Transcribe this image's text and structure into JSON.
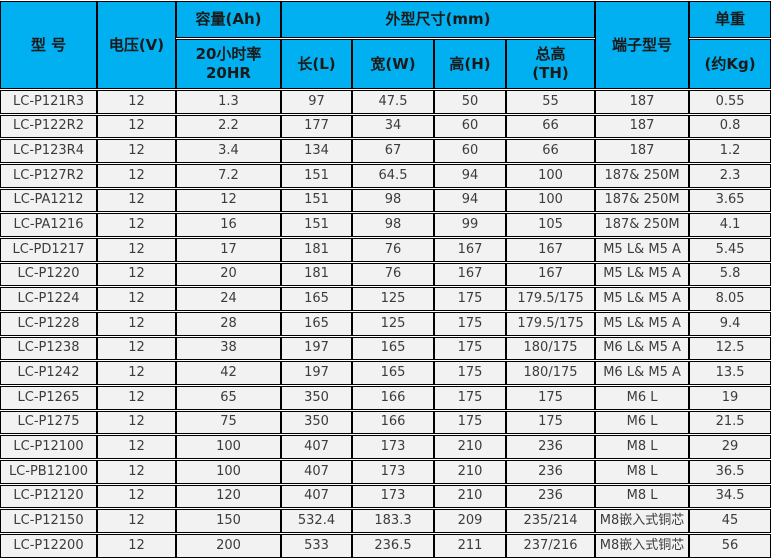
{
  "colors": {
    "header_bg": "#00b0f0",
    "row_bg": "#f2f2f2",
    "border": "#000000",
    "header_text": "#1a1a1a",
    "cell_text": "#3c3c3c"
  },
  "table": {
    "header": {
      "model": "型 号",
      "voltage": "电压(V)",
      "capacity_title": "容量(Ah)",
      "capacity_sub": "20小时率\n20HR",
      "dimensions_title": "外型尺寸(mm)",
      "length": "长(L)",
      "width": "宽(W)",
      "height": "高(H)",
      "total_height": "总高\n(TH)",
      "terminal": "端子型号",
      "weight_title": "单重",
      "weight_sub": "(约Kg)"
    },
    "column_keys": [
      "model",
      "voltage",
      "capacity",
      "length",
      "width",
      "height",
      "total-height",
      "terminal",
      "weight"
    ],
    "rows": [
      [
        "LC-P121R3",
        "12",
        "1.3",
        "97",
        "47.5",
        "50",
        "55",
        "187",
        "0.55"
      ],
      [
        "LC-P122R2",
        "12",
        "2.2",
        "177",
        "34",
        "60",
        "66",
        "187",
        "0.8"
      ],
      [
        "LC-P123R4",
        "12",
        "3.4",
        "134",
        "67",
        "60",
        "66",
        "187",
        "1.2"
      ],
      [
        "LC-P127R2",
        "12",
        "7.2",
        "151",
        "64.5",
        "94",
        "100",
        "187& 250M",
        "2.3"
      ],
      [
        "LC-PA1212",
        "12",
        "12",
        "151",
        "98",
        "94",
        "100",
        "187& 250M",
        "3.65"
      ],
      [
        "LC-PA1216",
        "12",
        "16",
        "151",
        "98",
        "99",
        "105",
        "187& 250M",
        "4.1"
      ],
      [
        "LC-PD1217",
        "12",
        "17",
        "181",
        "76",
        "167",
        "167",
        "M5 L& M5 A",
        "5.45"
      ],
      [
        "LC-P1220",
        "12",
        "20",
        "181",
        "76",
        "167",
        "167",
        "M5 L& M5 A",
        "5.8"
      ],
      [
        "LC-P1224",
        "12",
        "24",
        "165",
        "125",
        "175",
        "179.5/175",
        "M5 L& M5 A",
        "8.05"
      ],
      [
        "LC-P1228",
        "12",
        "28",
        "165",
        "125",
        "175",
        "179.5/175",
        "M5 L& M5 A",
        "9.4"
      ],
      [
        "LC-P1238",
        "12",
        "38",
        "197",
        "165",
        "175",
        "180/175",
        "M6 L& M5 A",
        "12.5"
      ],
      [
        "LC-P1242",
        "12",
        "42",
        "197",
        "165",
        "175",
        "180/175",
        "M6 L& M5 A",
        "13.5"
      ],
      [
        "LC-P1265",
        "12",
        "65",
        "350",
        "166",
        "175",
        "175",
        "M6 L",
        "19"
      ],
      [
        "LC-P1275",
        "12",
        "75",
        "350",
        "166",
        "175",
        "175",
        "M6 L",
        "21.5"
      ],
      [
        "LC-P12100",
        "12",
        "100",
        "407",
        "173",
        "210",
        "236",
        "M8 L",
        "29"
      ],
      [
        "LC-PB12100",
        "12",
        "100",
        "407",
        "173",
        "210",
        "236",
        "M8 L",
        "36.5"
      ],
      [
        "LC-P12120",
        "12",
        "120",
        "407",
        "173",
        "210",
        "236",
        "M8 L",
        "34.5"
      ],
      [
        "LC-P12150",
        "12",
        "150",
        "532.4",
        "183.3",
        "209",
        "235/214",
        "M8嵌入式铜芯",
        "45"
      ],
      [
        "LC-P12200",
        "12",
        "200",
        "533",
        "236.5",
        "211",
        "237/216",
        "M8嵌入式铜芯",
        "56"
      ]
    ]
  }
}
